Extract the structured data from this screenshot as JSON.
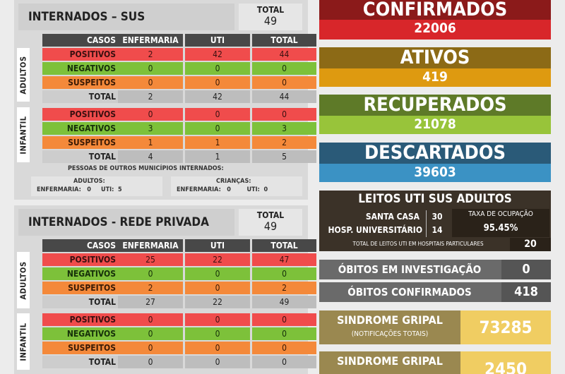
{
  "sus": {
    "title": "INTERNADOS – SUS",
    "total_label": "TOTAL",
    "total_value": "49",
    "headers": [
      "CASOS",
      "ENFERMARIA",
      "UTI",
      "TOTAL"
    ],
    "adultos_label": "ADULTOS",
    "infantil_label": "INFANTIL",
    "adultos": [
      [
        "POSITIVOS",
        "2",
        "42",
        "44"
      ],
      [
        "NEGATIVOS",
        "0",
        "0",
        "0"
      ],
      [
        "SUSPEITOS",
        "0",
        "0",
        "0"
      ],
      [
        "TOTAL",
        "2",
        "42",
        "44"
      ]
    ],
    "infantil": [
      [
        "POSITIVOS",
        "0",
        "0",
        "0"
      ],
      [
        "NEGATIVOS",
        "3",
        "0",
        "3"
      ],
      [
        "SUSPEITOS",
        "1",
        "1",
        "2"
      ],
      [
        "TOTAL",
        "4",
        "1",
        "5"
      ]
    ],
    "outros_title": "PESSOAS  DE OUTROS MUNICÍPIOS INTERNADOS:",
    "outros_adultos": "ADULTOS:",
    "outros_adultos_line": "ENFERMARIA:   0     UTI:  5",
    "outros_criancas": "CRIANÇAS:",
    "outros_criancas_line": "ENFERMARIA:   0        UTI:  0"
  },
  "privada": {
    "title": "INTERNADOS - REDE PRIVADA",
    "total_label": "TOTAL",
    "total_value": "49",
    "headers": [
      "CASOS",
      "ENFERMARIA",
      "UTI",
      "TOTAL"
    ],
    "adultos_label": "ADULTOS",
    "infantil_label": "INFANTIL",
    "adultos": [
      [
        "POSITIVOS",
        "25",
        "22",
        "47"
      ],
      [
        "NEGATIVOS",
        "0",
        "0",
        "0"
      ],
      [
        "SUSPEITOS",
        "2",
        "0",
        "2"
      ],
      [
        "TOTAL",
        "27",
        "22",
        "49"
      ]
    ],
    "infantil": [
      [
        "POSITIVOS",
        "0",
        "0",
        "0"
      ],
      [
        "NEGATIVOS",
        "0",
        "0",
        "0"
      ],
      [
        "SUSPEITOS",
        "0",
        "0",
        "0"
      ],
      [
        "TOTAL",
        "0",
        "0",
        "0"
      ]
    ]
  },
  "confirmados": {
    "label": "CONFIRMADOS",
    "value": "22006"
  },
  "ativos": {
    "label": "ATIVOS",
    "value": "419"
  },
  "recuperados": {
    "label": "RECUPERADOS",
    "value": "21078"
  },
  "descartados": {
    "label": "DESCARTADOS",
    "value": "39603"
  },
  "leitos": {
    "title": "LEITOS UTI SUS ADULTOS",
    "santa_casa": "SANTA CASA",
    "santa_casa_value": "30",
    "hosp": "HOSP. UNIVERSITÁRIO",
    "hosp_value": "14",
    "taxa_label": "TAXA DE OCUPAÇÃO",
    "taxa_value": "95.45%",
    "particulares_label": "TOTAL DE LEITOS UTI EM HOSPITAIS PARTICULARES",
    "particulares_value": "20"
  },
  "obitos_investigacao": {
    "label": "ÓBITOS EM INVESTIGAÇÃO",
    "value": "0"
  },
  "obitos_confirmados": {
    "label": "ÓBITOS CONFIRMADOS",
    "value": "418"
  },
  "sindrome1": {
    "label": "SINDROME GRIPAL",
    "sub": "(NOTIFICAÇÕES TOTAIS)",
    "value": "73285"
  },
  "sindrome2": {
    "label": "SINDROME GRIPAL",
    "value": "2450"
  },
  "colors": {
    "confirmados_top": "#8b1a1a",
    "confirmados_bottom": "#d8262a",
    "ativos_top": "#8c6a16",
    "ativos_bottom": "#de9a10",
    "recuperados_top": "#5e7a28",
    "recuperados_bottom": "#98c43a",
    "descartados_top": "#2a5a78",
    "descartados_bottom": "#3b92c4",
    "leitos": "#3b3228",
    "obitos": "#6a6a6a",
    "sindrome": "#9a8850",
    "sindrome_value": "#f0cd62"
  }
}
